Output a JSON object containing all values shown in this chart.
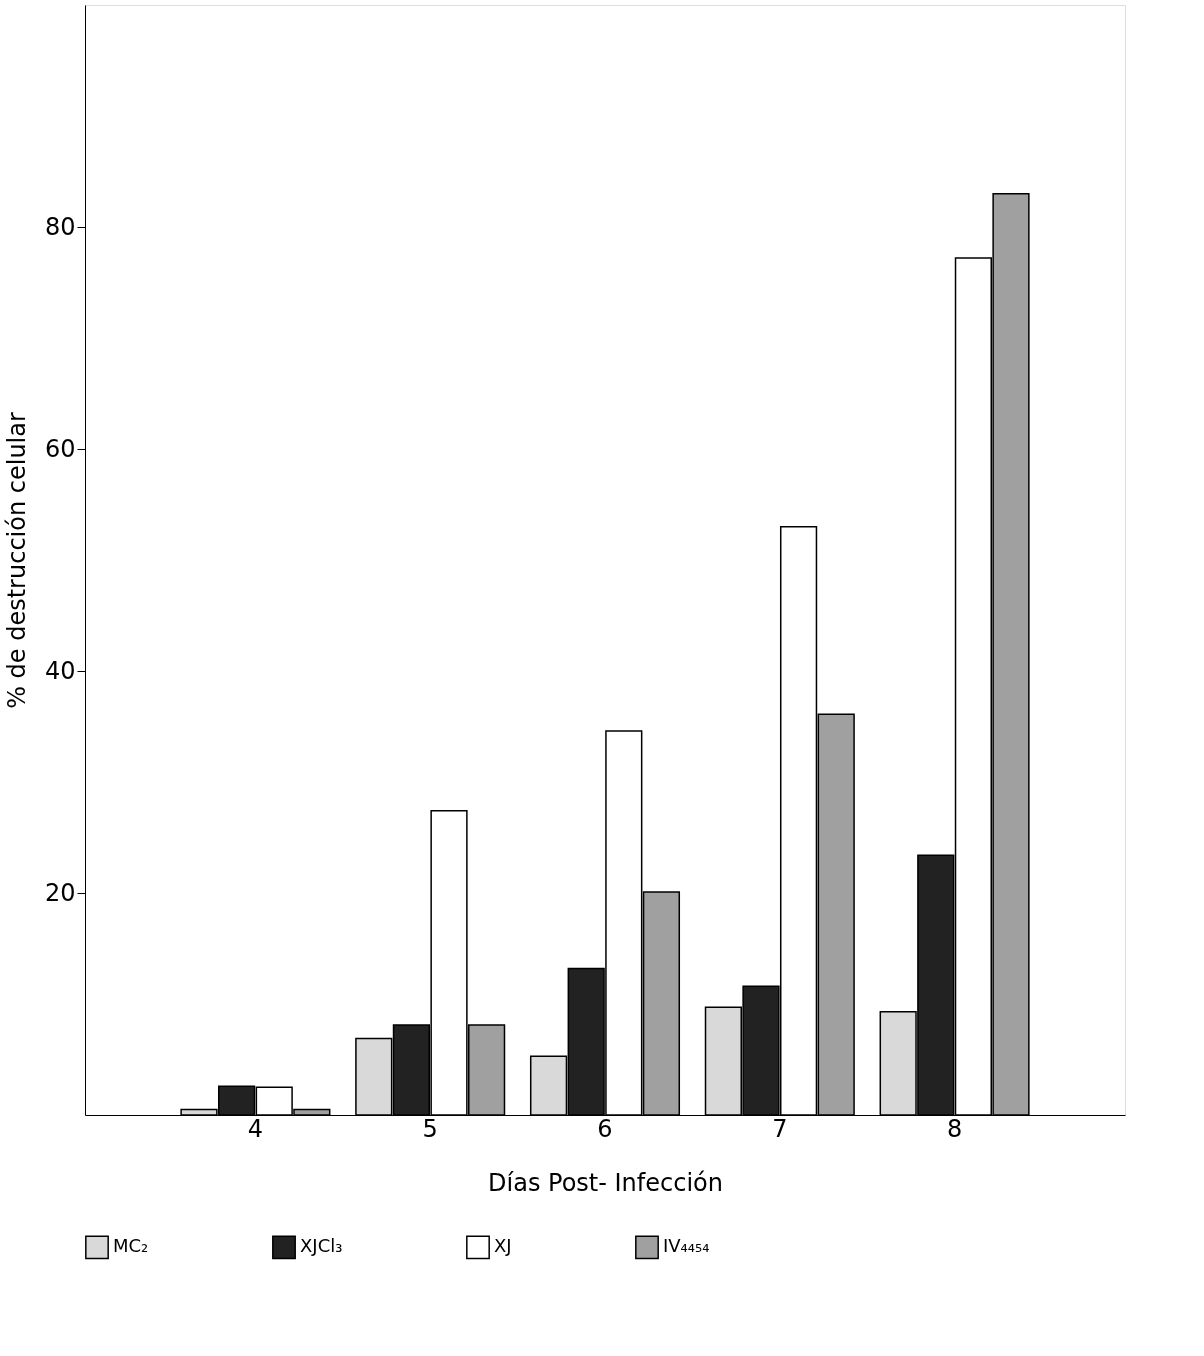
{
  "chart_data": {
    "type": "bar",
    "categories": [
      "4",
      "5",
      "6",
      "7",
      "8"
    ],
    "xlabel": "Días Post- Infección",
    "ylabel": "% de destrucción celular",
    "ylim": [
      0,
      100
    ],
    "yticks": [
      20,
      40,
      60,
      80
    ],
    "grid": false,
    "legend": "bottom",
    "series": [
      {
        "name": "MC₂",
        "color": "#d9d9d9",
        "values": [
          0.5,
          6.9,
          5.3,
          9.7,
          9.3
        ]
      },
      {
        "name": "XJCl₃",
        "color": "#222222",
        "values": [
          2.6,
          8.1,
          13.2,
          11.6,
          23.4
        ]
      },
      {
        "name": "XJ",
        "color": "#ffffff",
        "values": [
          2.5,
          27.4,
          34.6,
          53.0,
          77.2
        ]
      },
      {
        "name": "IV₄₄₅₄",
        "color": "#a0a0a0",
        "values": [
          0.5,
          8.1,
          20.1,
          36.1,
          83.0
        ]
      }
    ]
  }
}
